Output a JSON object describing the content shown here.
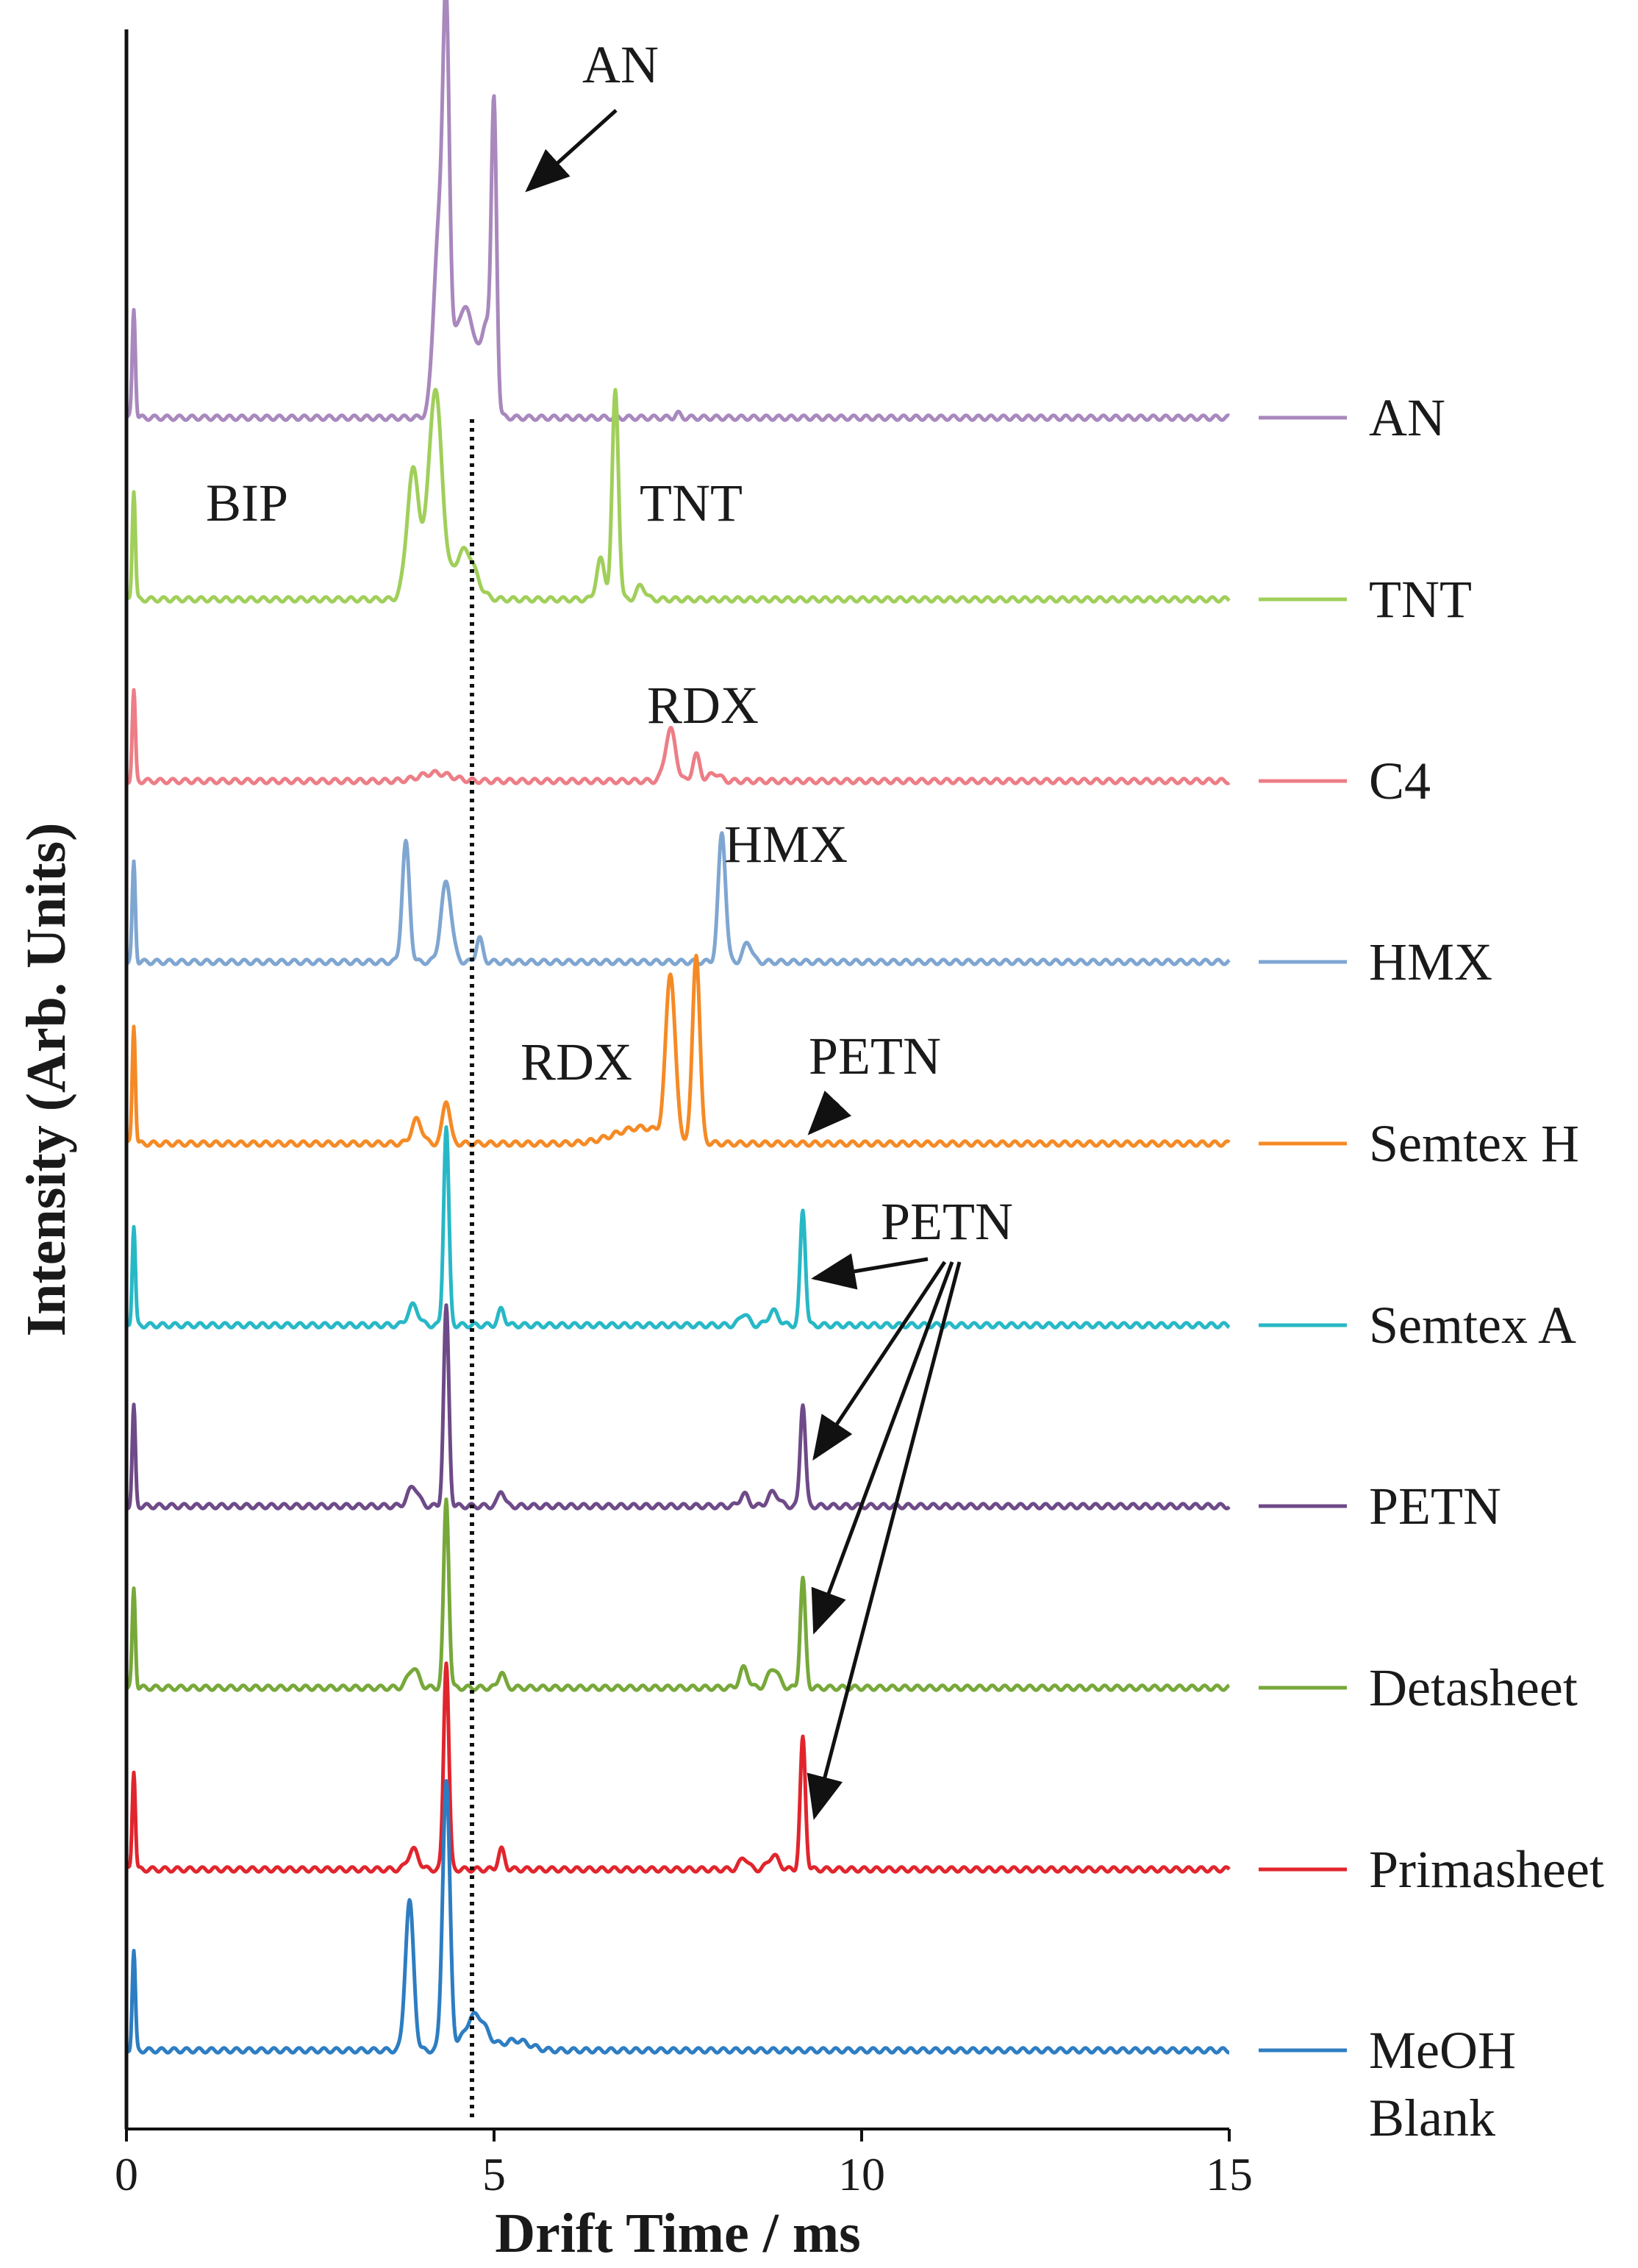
{
  "chart_data": {
    "type": "line",
    "title": "",
    "xlabel": "Drift Time / ms",
    "ylabel": "Intensity (Arb. Units)",
    "xlim": [
      0,
      15
    ],
    "xticks": [
      "0",
      "5",
      "10",
      "15"
    ],
    "grid": false,
    "legend_placement": "right",
    "reference_line_x": 4.7,
    "series": [
      {
        "name": "AN",
        "color": "#a888bd",
        "peaks": [
          [
            0.1,
            0.55,
            0.03
          ],
          [
            4.25,
            0.9,
            0.1
          ],
          [
            4.35,
            1.65,
            0.06
          ],
          [
            4.6,
            0.55,
            0.25
          ],
          [
            5.0,
            1.5,
            0.05
          ],
          [
            4.9,
            0.35,
            0.08
          ],
          [
            7.5,
            0.02,
            0.05
          ]
        ]
      },
      {
        "name": "TNT",
        "color": "#a0cf5a",
        "peaks": [
          [
            0.1,
            0.55,
            0.03
          ],
          [
            3.9,
            0.65,
            0.12
          ],
          [
            4.2,
            1.05,
            0.13
          ],
          [
            4.6,
            0.25,
            0.2
          ],
          [
            6.65,
            1.05,
            0.06
          ],
          [
            6.45,
            0.2,
            0.08
          ],
          [
            7.0,
            0.07,
            0.08
          ]
        ]
      },
      {
        "name": "C4",
        "color": "#ed7d86",
        "peaks": [
          [
            0.1,
            0.45,
            0.03
          ],
          [
            4.2,
            0.04,
            0.3
          ],
          [
            7.4,
            0.26,
            0.1
          ],
          [
            7.75,
            0.13,
            0.07
          ],
          [
            8.0,
            0.04,
            0.1
          ]
        ]
      },
      {
        "name": "HMX",
        "color": "#7fa6d1",
        "peaks": [
          [
            0.1,
            0.5,
            0.03
          ],
          [
            3.8,
            0.6,
            0.07
          ],
          [
            4.35,
            0.4,
            0.1
          ],
          [
            4.8,
            0.12,
            0.06
          ],
          [
            8.1,
            0.65,
            0.07
          ],
          [
            8.45,
            0.1,
            0.08
          ]
        ]
      },
      {
        "name": "Semtex H",
        "color": "#f58a25",
        "peaks": [
          [
            0.1,
            0.6,
            0.03
          ],
          [
            3.95,
            0.12,
            0.1
          ],
          [
            4.35,
            0.22,
            0.07
          ],
          [
            7.4,
            0.82,
            0.09
          ],
          [
            7.75,
            0.95,
            0.07
          ],
          [
            7.0,
            0.08,
            0.5
          ]
        ]
      },
      {
        "name": "Semtex A",
        "color": "#27b8c6",
        "peaks": [
          [
            0.1,
            0.5,
            0.03
          ],
          [
            3.9,
            0.1,
            0.1
          ],
          [
            4.35,
            1.0,
            0.05
          ],
          [
            5.1,
            0.08,
            0.06
          ],
          [
            8.4,
            0.06,
            0.08
          ],
          [
            8.8,
            0.07,
            0.1
          ],
          [
            9.2,
            0.58,
            0.05
          ]
        ]
      },
      {
        "name": "PETN",
        "color": "#6e4a88",
        "peaks": [
          [
            0.1,
            0.5,
            0.03
          ],
          [
            3.9,
            0.1,
            0.1
          ],
          [
            4.35,
            1.0,
            0.05
          ],
          [
            5.1,
            0.08,
            0.06
          ],
          [
            8.4,
            0.06,
            0.08
          ],
          [
            8.8,
            0.07,
            0.1
          ],
          [
            9.2,
            0.52,
            0.05
          ]
        ]
      },
      {
        "name": "Detasheet",
        "color": "#77a83a",
        "peaks": [
          [
            0.1,
            0.5,
            0.03
          ],
          [
            3.9,
            0.1,
            0.1
          ],
          [
            4.35,
            0.95,
            0.05
          ],
          [
            5.1,
            0.08,
            0.06
          ],
          [
            8.4,
            0.1,
            0.08
          ],
          [
            8.8,
            0.1,
            0.1
          ],
          [
            9.2,
            0.55,
            0.05
          ]
        ]
      },
      {
        "name": "Primasheet",
        "color": "#e1252d",
        "peaks": [
          [
            0.1,
            0.5,
            0.03
          ],
          [
            3.9,
            0.1,
            0.1
          ],
          [
            4.35,
            1.05,
            0.05
          ],
          [
            5.1,
            0.1,
            0.06
          ],
          [
            8.4,
            0.06,
            0.08
          ],
          [
            8.8,
            0.07,
            0.1
          ],
          [
            9.2,
            0.66,
            0.05
          ]
        ]
      },
      {
        "name": "MeOH Blank",
        "label_lines": [
          "MeOH",
          "Blank"
        ],
        "color": "#2d7dc2",
        "peaks": [
          [
            0.1,
            0.5,
            0.03
          ],
          [
            3.85,
            0.75,
            0.08
          ],
          [
            4.35,
            1.35,
            0.07
          ],
          [
            4.75,
            0.18,
            0.2
          ],
          [
            5.3,
            0.05,
            0.25
          ]
        ]
      }
    ],
    "annotations": [
      {
        "text": "AN",
        "points_to_series": "AN",
        "points_to_x": 5.0,
        "arrow": true
      },
      {
        "text": "BIP",
        "arrow": false
      },
      {
        "text": "TNT",
        "arrow": false
      },
      {
        "text": "RDX",
        "near_series": "C4",
        "arrow": false
      },
      {
        "text": "HMX",
        "near_series": "HMX",
        "arrow": false
      },
      {
        "text": "RDX",
        "near_series": "Semtex H",
        "arrow": false
      },
      {
        "text": "PETN",
        "points_to_series": "Semtex H",
        "points_to_x": 9.3,
        "arrow": true
      },
      {
        "text": "PETN",
        "points_to_series": [
          "Semtex A",
          "PETN",
          "Detasheet",
          "Primasheet"
        ],
        "points_to_x": 9.2,
        "arrow": true
      }
    ]
  }
}
